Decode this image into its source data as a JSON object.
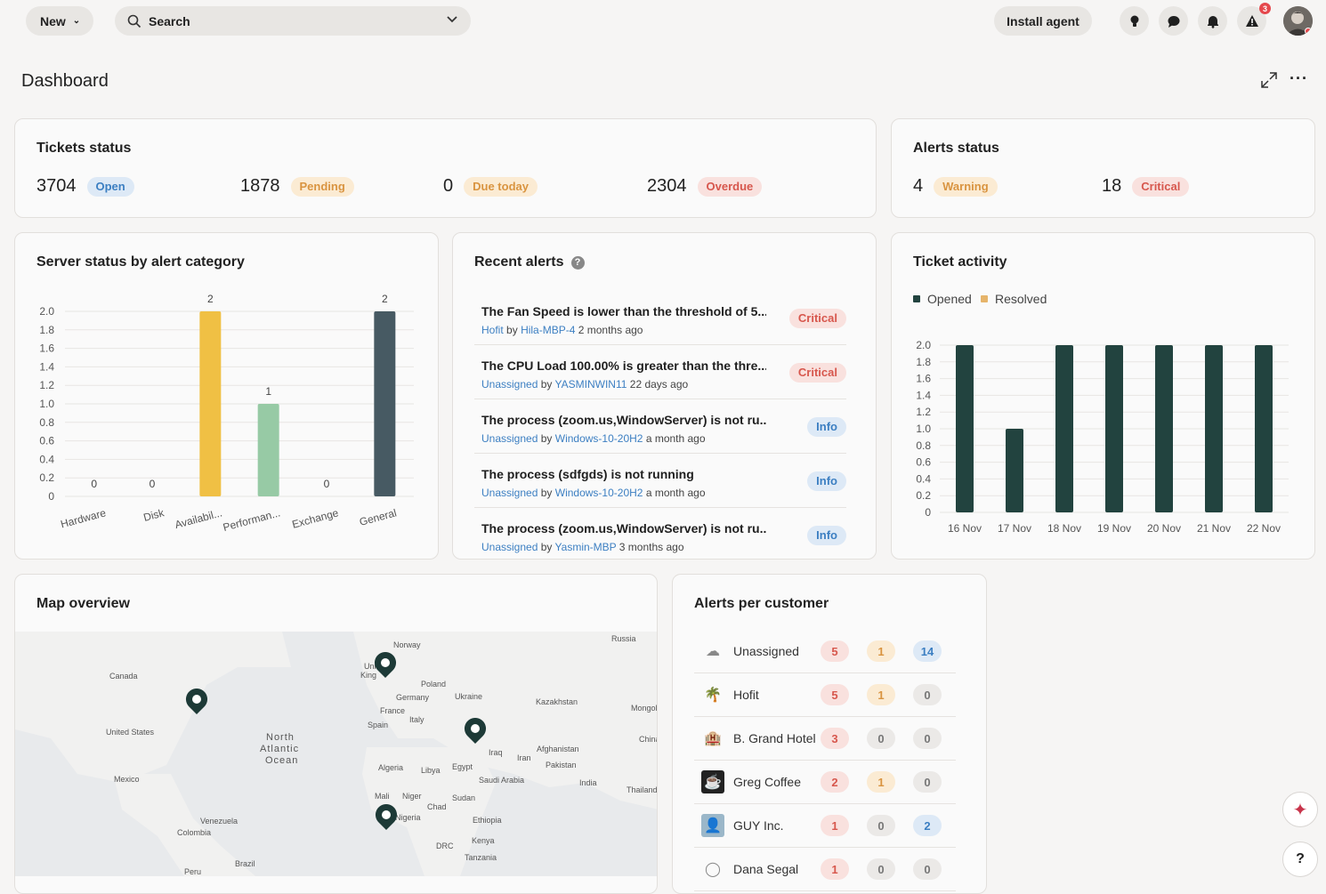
{
  "topbar": {
    "new_label": "New",
    "search_placeholder": "Search",
    "install_label": "Install agent",
    "alerts_badge": "3"
  },
  "page": {
    "title": "Dashboard"
  },
  "tickets_status": {
    "title": "Tickets status",
    "items": [
      {
        "value": "3704",
        "label": "Open"
      },
      {
        "value": "1878",
        "label": "Pending"
      },
      {
        "value": "0",
        "label": "Due today"
      },
      {
        "value": "2304",
        "label": "Overdue"
      }
    ]
  },
  "alerts_status": {
    "title": "Alerts status",
    "items": [
      {
        "value": "4",
        "label": "Warning"
      },
      {
        "value": "18",
        "label": "Critical"
      }
    ]
  },
  "server_status": {
    "title": "Server status by alert category",
    "colors": [
      "#f0c044",
      "#f0c044",
      "#f0c044",
      "#97caa5",
      "#97caa5",
      "#475a63"
    ]
  },
  "recent_alerts": {
    "title": "Recent alerts",
    "items": [
      {
        "title": "The Fan Speed is lower than the threshold of 5...",
        "who": "Hofit",
        "by": "by",
        "device": "Hila-MBP-4",
        "when": "2 months ago",
        "severity": "Critical"
      },
      {
        "title": "The CPU Load 100.00% is greater than the thre...",
        "who": "Unassigned",
        "by": "by",
        "device": "YASMINWIN11",
        "when": "22 days ago",
        "severity": "Critical"
      },
      {
        "title": "The process (zoom.us,WindowServer) is not ru...",
        "who": "Unassigned",
        "by": "by",
        "device": "Windows-10-20H2",
        "when": "a month ago",
        "severity": "Info"
      },
      {
        "title": "The process (sdfgds) is not running",
        "who": "Unassigned",
        "by": "by",
        "device": "Windows-10-20H2",
        "when": "a month ago",
        "severity": "Info"
      },
      {
        "title": "The process (zoom.us,WindowServer) is not ru...",
        "who": "Unassigned",
        "by": "by",
        "device": "Yasmin-MBP",
        "when": "3 months ago",
        "severity": "Info"
      }
    ]
  },
  "ticket_activity": {
    "title": "Ticket activity",
    "legend": [
      "Opened",
      "Resolved"
    ],
    "colors": {
      "opened": "#22433f",
      "resolved": "#e6b46a"
    }
  },
  "map": {
    "title": "Map overview",
    "labels": [
      "Norway",
      "Russia",
      "Canada",
      "United States",
      "North",
      "Atlantic",
      "Ocean",
      "Poland",
      "Ukraine",
      "Kazakhstan",
      "Mongol",
      "Germany",
      "France",
      "Spain",
      "Italy",
      "China",
      "Iraq",
      "Iran",
      "Afghanistan",
      "Pakistan",
      "Algeria",
      "Libya",
      "Egypt",
      "Saudi Arabia",
      "India",
      "Thailand",
      "Mexico",
      "Mali",
      "Niger",
      "Chad",
      "Sudan",
      "Ethiopia",
      "Nigeria",
      "Kenya",
      "DRC",
      "Tanzania",
      "Venezuela",
      "Colombia",
      "Brazil",
      "Peru",
      "Uni",
      "King"
    ]
  },
  "alerts_per_customer": {
    "title": "Alerts per customer",
    "rows": [
      {
        "name": "Unassigned",
        "critical": "5",
        "warning": "1",
        "info": "14"
      },
      {
        "name": "Hofit",
        "critical": "5",
        "warning": "1",
        "info": "0"
      },
      {
        "name": "B. Grand Hotel",
        "critical": "3",
        "warning": "0",
        "info": "0"
      },
      {
        "name": "Greg Coffee",
        "critical": "2",
        "warning": "1",
        "info": "0"
      },
      {
        "name": "GUY Inc.",
        "critical": "1",
        "warning": "0",
        "info": "2"
      },
      {
        "name": "Dana Segal",
        "critical": "1",
        "warning": "0",
        "info": "0"
      }
    ]
  },
  "chart_data": [
    {
      "type": "bar",
      "title": "Server status by alert category",
      "categories": [
        "Hardware",
        "Disk",
        "Availabil...",
        "Performan...",
        "Exchange",
        "General"
      ],
      "values": [
        0,
        0,
        2,
        1,
        0,
        2
      ],
      "ylim": [
        0,
        2.0
      ],
      "yticks": [
        "0",
        "0.2",
        "0.4",
        "0.6",
        "0.8",
        "1.0",
        "1.2",
        "1.4",
        "1.6",
        "1.8",
        "2.0"
      ]
    },
    {
      "type": "bar",
      "title": "Ticket activity",
      "categories": [
        "16 Nov",
        "17 Nov",
        "18 Nov",
        "19 Nov",
        "20 Nov",
        "21 Nov",
        "22 Nov"
      ],
      "series": [
        {
          "name": "Opened",
          "values": [
            2,
            1,
            2,
            2,
            2,
            2,
            2
          ]
        },
        {
          "name": "Resolved",
          "values": [
            0,
            0,
            0,
            0,
            0,
            0,
            0
          ]
        }
      ],
      "ylim": [
        0,
        2.0
      ],
      "yticks": [
        "0",
        "0.2",
        "0.4",
        "0.6",
        "0.8",
        "1.0",
        "1.2",
        "1.4",
        "1.6",
        "1.8",
        "2.0"
      ]
    }
  ]
}
